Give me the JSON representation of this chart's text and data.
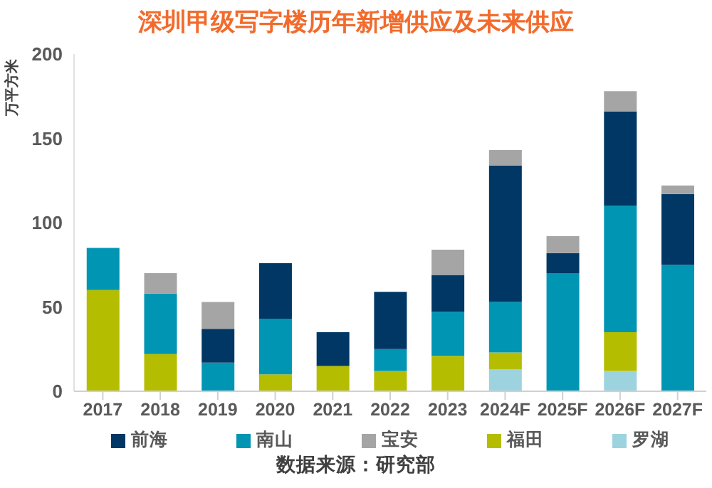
{
  "chart_data": {
    "type": "bar",
    "title": "深圳甲级写字楼历年新增供应及未来供应",
    "ylabel": "万平方米",
    "categories": [
      "2017",
      "2018",
      "2019",
      "2020",
      "2021",
      "2022",
      "2023",
      "2024F",
      "2025F",
      "2026F",
      "2027F"
    ],
    "stacked": true,
    "ylim": [
      0,
      200
    ],
    "yticks": [
      0,
      50,
      100,
      150,
      200
    ],
    "legend": "bottom",
    "annotations": [
      "数据来源：研究部"
    ],
    "series": [
      {
        "name": "罗湖",
        "color": "#9dd3df",
        "values": [
          0,
          0,
          0,
          0,
          0,
          0,
          0,
          13,
          0,
          12,
          0
        ]
      },
      {
        "name": "福田",
        "color": "#b5bd00",
        "values": [
          60,
          22,
          0,
          10,
          15,
          12,
          21,
          10,
          0,
          23,
          0
        ]
      },
      {
        "name": "南山",
        "color": "#0095b3",
        "values": [
          25,
          36,
          17,
          33,
          0,
          13,
          26,
          30,
          70,
          75,
          75
        ]
      },
      {
        "name": "前海",
        "color": "#003764",
        "values": [
          0,
          0,
          20,
          33,
          20,
          34,
          22,
          81,
          12,
          56,
          42
        ]
      },
      {
        "name": "宝安",
        "color": "#a5a5a5",
        "values": [
          0,
          12,
          16,
          0,
          0,
          0,
          15,
          9,
          10,
          12,
          5
        ]
      }
    ]
  }
}
